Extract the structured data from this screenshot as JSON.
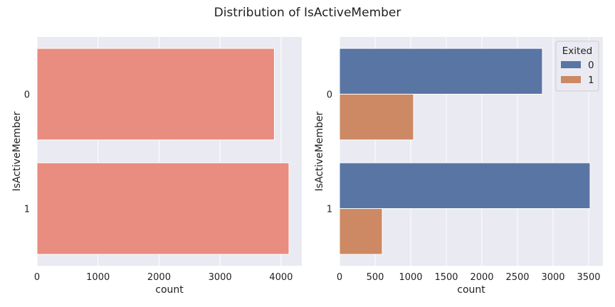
{
  "figure": {
    "suptitle": "Distribution of IsActiveMember"
  },
  "chart_data": [
    {
      "type": "bar",
      "orientation": "horizontal",
      "categories": [
        "0",
        "1"
      ],
      "values": [
        3890,
        4130
      ],
      "xlabel": "count",
      "ylabel": "IsActiveMember",
      "xlim": [
        0,
        4340
      ],
      "xticks": [
        0,
        1000,
        2000,
        3000,
        4000
      ],
      "grid": true,
      "bar_color": "#e88d80"
    },
    {
      "type": "bar",
      "orientation": "horizontal",
      "categories": [
        "0",
        "1"
      ],
      "series": [
        {
          "name": "0",
          "values": [
            2850,
            3520
          ],
          "color": "#5975a4"
        },
        {
          "name": "1",
          "values": [
            1040,
            600
          ],
          "color": "#cc8963"
        }
      ],
      "xlabel": "count",
      "ylabel": "IsActiveMember",
      "xlim": [
        0,
        3700
      ],
      "xticks": [
        0,
        500,
        1000,
        1500,
        2000,
        2500,
        3000,
        3500
      ],
      "grid": true,
      "legend": {
        "title": "Exited",
        "position": "top-right"
      }
    }
  ]
}
